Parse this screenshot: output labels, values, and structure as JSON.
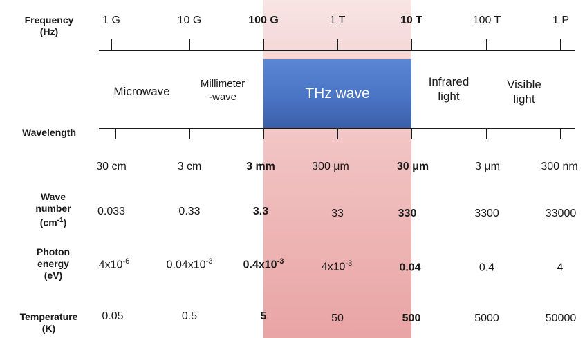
{
  "frequency": {
    "label": [
      "Frequency",
      "(Hz)"
    ],
    "ticks": [
      "1 G",
      "10 G",
      "100 G",
      "1 T",
      "10 T",
      "100 T",
      "1 P"
    ]
  },
  "regions": {
    "microwave": "Microwave",
    "millimeter": [
      "Millimeter",
      "-wave"
    ],
    "thz": "THz wave",
    "infrared": [
      "Infrared",
      "light"
    ],
    "visible": [
      "Visible",
      "light"
    ]
  },
  "wavelength": {
    "label": "Wavelength",
    "values": [
      "30 cm",
      "3 cm",
      "3 mm",
      "300 μm",
      "30 μm",
      "3 μm",
      "300 nm"
    ]
  },
  "wave_number": {
    "label": [
      "Wave",
      "number"
    ],
    "unit": "cm",
    "unit_exp": "-1",
    "values": [
      "0.033",
      "0.33",
      "3.3",
      "33",
      "330",
      "3300",
      "33000"
    ]
  },
  "photon_energy": {
    "label": [
      "Photon",
      "energy",
      "(eV)"
    ],
    "values": [
      {
        "base": "4x10",
        "exp": "-6"
      },
      {
        "base": "0.04x10",
        "exp": "-3"
      },
      {
        "base": "0.4x10",
        "exp": "-3"
      },
      {
        "base": "4x10",
        "exp": "-3"
      },
      {
        "base": "0.04",
        "exp": ""
      },
      {
        "base": "0.4",
        "exp": ""
      },
      {
        "base": "4",
        "exp": ""
      }
    ]
  },
  "temperature": {
    "label": [
      "Temperature",
      "(K)"
    ],
    "values": [
      "0.05",
      "0.5",
      "5",
      "50",
      "500",
      "5000",
      "50000"
    ]
  },
  "colors": {
    "thz_box": "#4a74c4",
    "thz_band": "#f1c2c2"
  }
}
